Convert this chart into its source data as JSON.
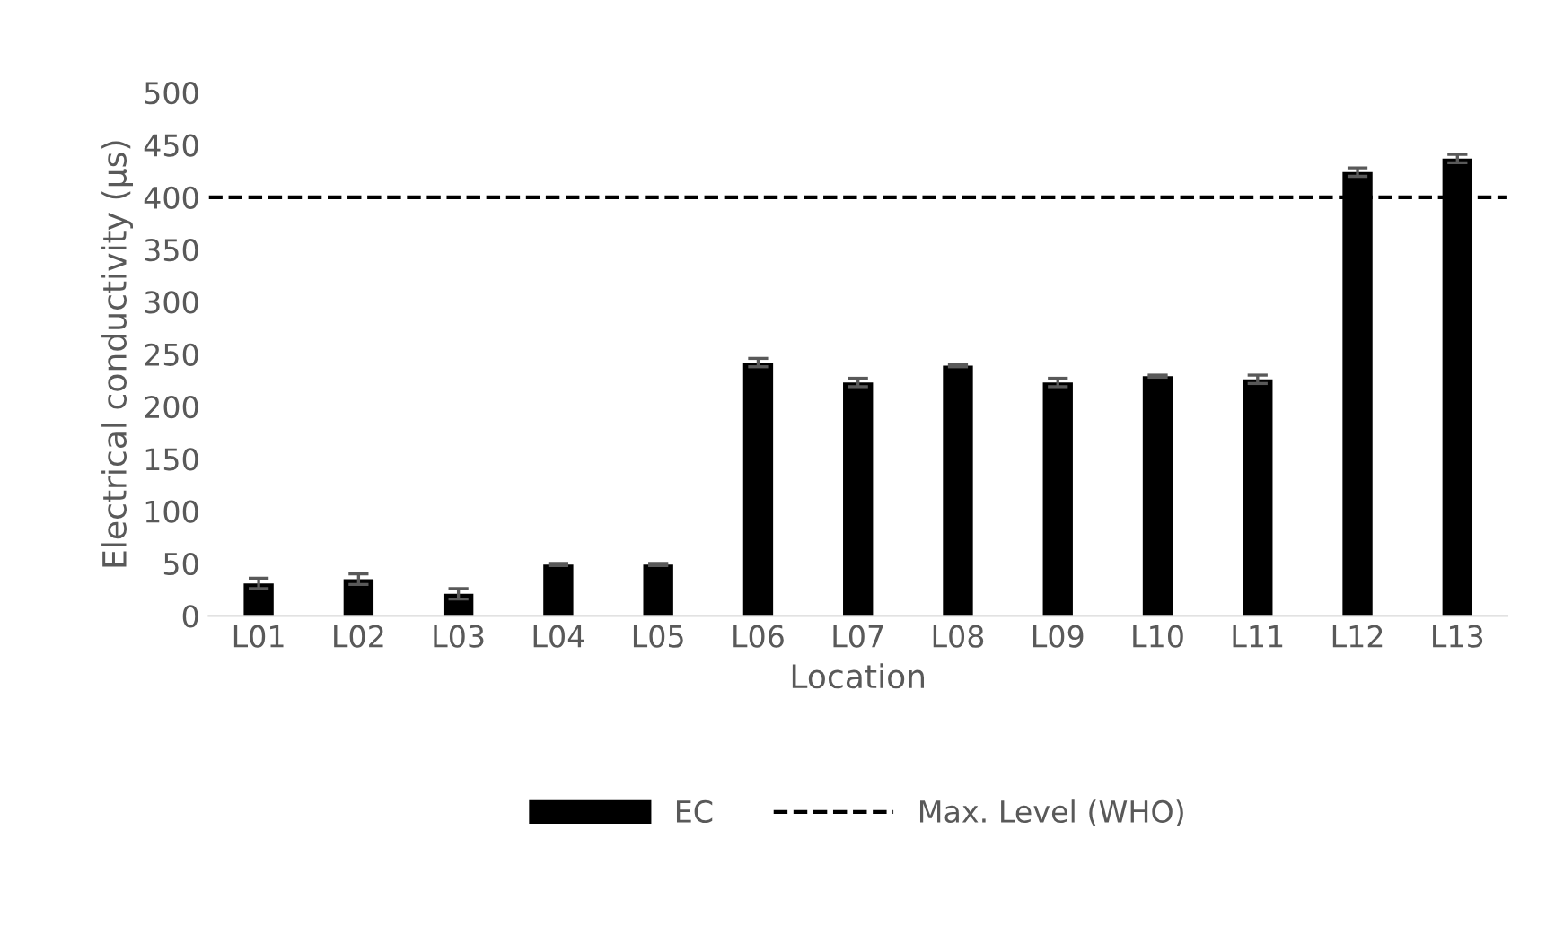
{
  "chart_data": {
    "type": "bar",
    "xlabel": "Location",
    "ylabel": "Electrical conductivity (µs)",
    "categories": [
      "L01",
      "L02",
      "L03",
      "L04",
      "L05",
      "L06",
      "L07",
      "L08",
      "L09",
      "L10",
      "L11",
      "L12",
      "L13"
    ],
    "series": [
      {
        "name": "EC",
        "color": "#000000",
        "values": [
          31,
          35,
          21,
          49,
          49,
          242,
          223,
          239,
          223,
          229,
          226,
          424,
          437
        ],
        "errors": [
          5,
          5,
          5,
          1,
          1,
          4,
          4,
          1,
          4,
          1,
          4,
          4,
          4
        ]
      }
    ],
    "ref_lines": [
      {
        "axis": "y",
        "value": 400,
        "label": "Max. Level (WHO)",
        "color": "#000000",
        "line_style": "dashed"
      }
    ],
    "ylim": [
      0,
      500
    ],
    "yticks": [
      0,
      50,
      100,
      150,
      200,
      250,
      300,
      350,
      400,
      450,
      500
    ],
    "grid": false,
    "legend": "bottom"
  }
}
